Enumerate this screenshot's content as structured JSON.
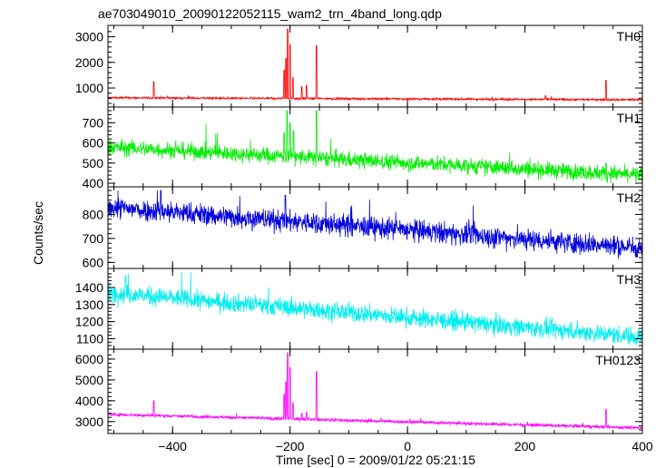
{
  "chart_data": {
    "type": "line",
    "title": "ae703049010_20090122052115_wam2_trn_4band_long.qdp",
    "xlabel": "Time [sec] 0 = 2009/01/22 05:21:15",
    "ylabel": "Counts/sec",
    "xlim": [
      -510,
      400
    ],
    "xticks": [
      -400,
      -200,
      0,
      200,
      400
    ],
    "x_tick_labels": [
      "−400",
      "−200",
      "0",
      "200",
      "400"
    ],
    "panels": [
      {
        "name": "TH0",
        "color": "#ff0000",
        "ylim": [
          400,
          3300
        ],
        "yticks": [
          1000,
          2000,
          3000
        ],
        "y_tick_labels": [
          "1000",
          "2000",
          "3000"
        ],
        "base_start": 620,
        "base_end": 540,
        "noise": 30,
        "spikes": [
          [
            -432,
            1250
          ],
          [
            -210,
            1700
          ],
          [
            -207,
            2150
          ],
          [
            -204,
            3300
          ],
          [
            -200,
            2700
          ],
          [
            -195,
            1400
          ],
          [
            -180,
            1050
          ],
          [
            -172,
            1100
          ],
          [
            -155,
            2650
          ],
          [
            235,
            700
          ],
          [
            338,
            1300
          ]
        ]
      },
      {
        "name": "TH1",
        "color": "#00ee00",
        "ylim": [
          400,
          760
        ],
        "yticks": [
          400,
          500,
          600,
          700
        ],
        "y_tick_labels": [
          "400",
          "500",
          "600",
          "700"
        ],
        "base_start": 580,
        "base_end": 440,
        "noise": 28,
        "spikes": [
          [
            -210,
            650
          ],
          [
            -205,
            760
          ],
          [
            -200,
            700
          ],
          [
            -194,
            660
          ],
          [
            -155,
            760
          ],
          [
            338,
            500
          ]
        ]
      },
      {
        "name": "TH2",
        "color": "#0000dd",
        "ylim": [
          590,
          900
        ],
        "yticks": [
          600,
          700,
          800
        ],
        "y_tick_labels": [
          "600",
          "700",
          "800"
        ],
        "base_start": 830,
        "base_end": 660,
        "noise": 32,
        "spikes": [
          [
            -420,
            900
          ],
          [
            -208,
            880
          ]
        ]
      },
      {
        "name": "TH3",
        "color": "#00eeee",
        "ylim": [
          1060,
          1490
        ],
        "yticks": [
          1100,
          1200,
          1300,
          1400
        ],
        "y_tick_labels": [
          "1100",
          "1200",
          "1300",
          "1400"
        ],
        "base_start": 1370,
        "base_end": 1110,
        "noise": 38,
        "spikes": [
          [
            -480,
            1470
          ]
        ]
      },
      {
        "name": "TH0123",
        "color": "#ff00ff",
        "ylim": [
          2600,
          6300
        ],
        "yticks": [
          3000,
          4000,
          5000,
          6000
        ],
        "y_tick_labels": [
          "3000",
          "4000",
          "5000",
          "6000"
        ],
        "base_start": 3350,
        "base_end": 2700,
        "noise": 55,
        "spikes": [
          [
            -432,
            4000
          ],
          [
            -210,
            4300
          ],
          [
            -207,
            4900
          ],
          [
            -204,
            6300
          ],
          [
            -200,
            5600
          ],
          [
            -195,
            3900
          ],
          [
            -180,
            3400
          ],
          [
            -172,
            3450
          ],
          [
            -155,
            5400
          ],
          [
            338,
            3600
          ]
        ]
      }
    ]
  }
}
